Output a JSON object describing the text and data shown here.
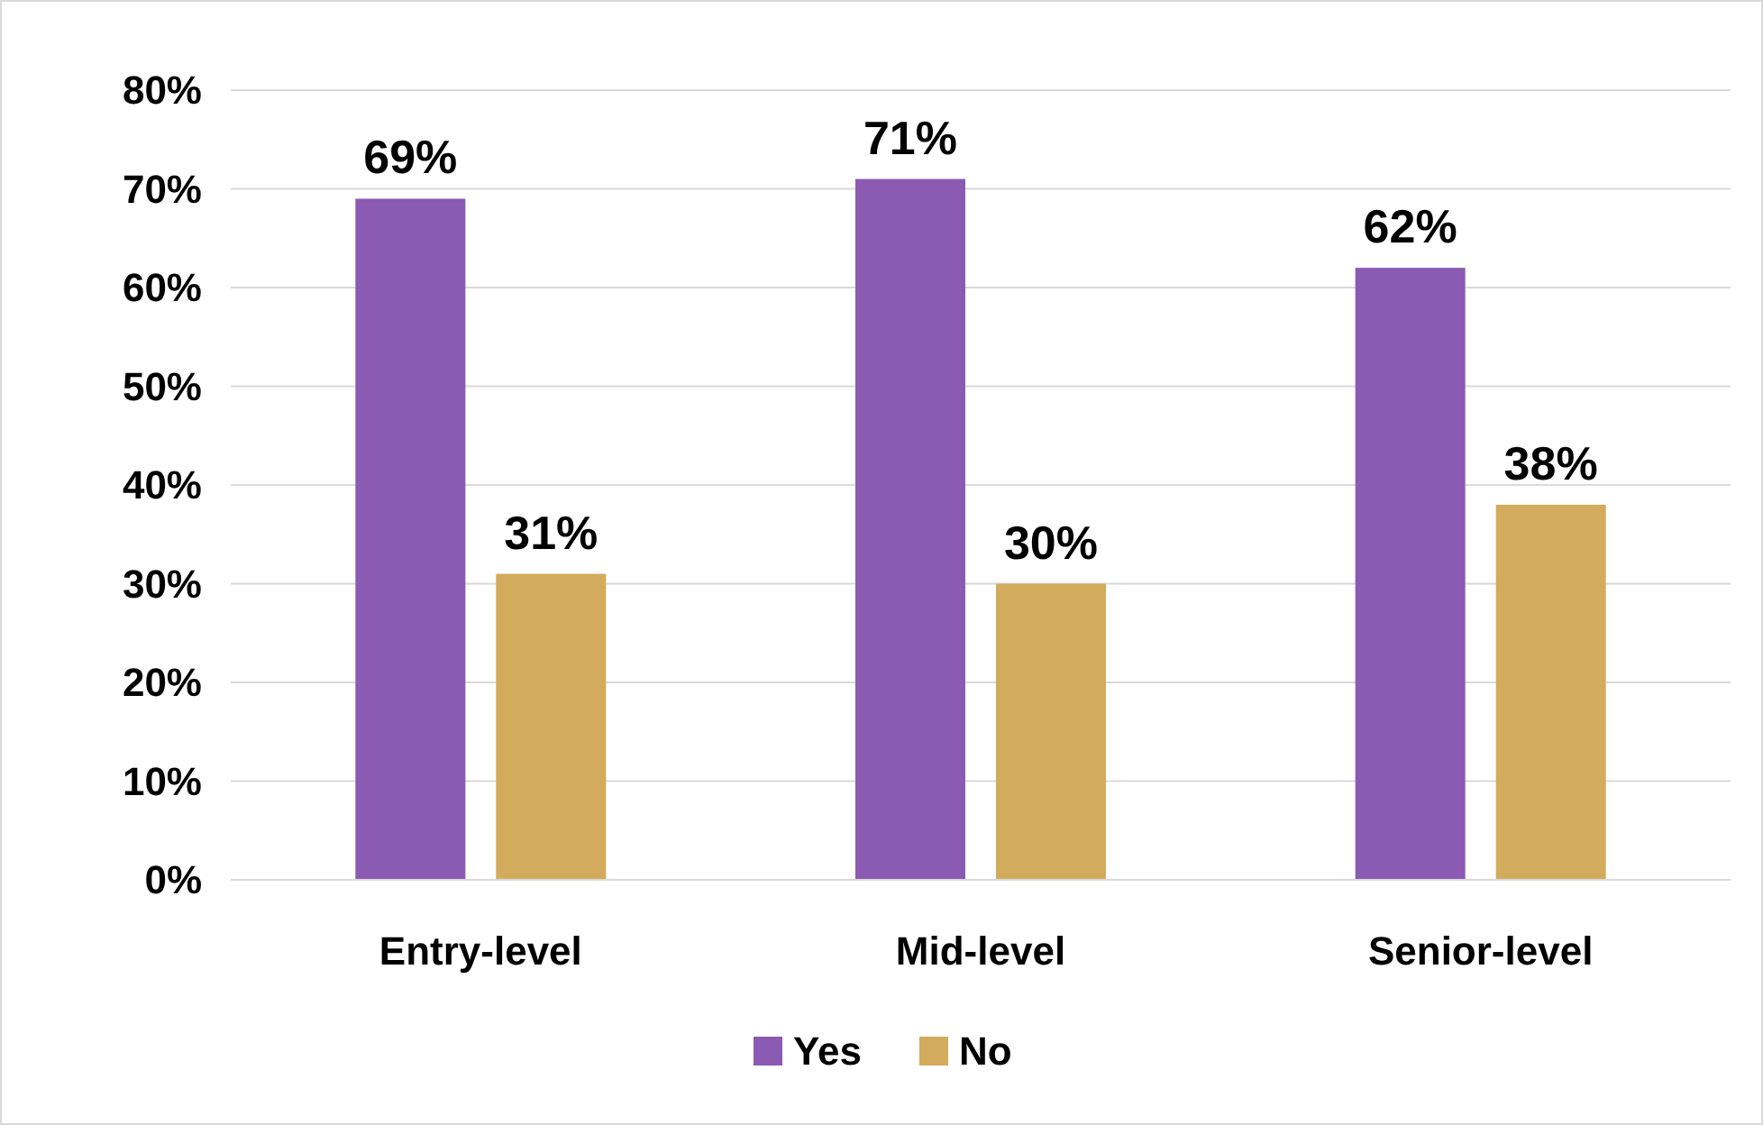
{
  "chart_data": {
    "type": "bar",
    "categories": [
      "Entry-level",
      "Mid-level",
      "Senior-level"
    ],
    "series": [
      {
        "name": "Yes",
        "color": "#8b5ab3",
        "values": [
          69,
          71,
          62
        ],
        "value_labels": [
          "69%",
          "71%",
          "62%"
        ]
      },
      {
        "name": "No",
        "color": "#d2ab5c",
        "values": [
          31,
          30,
          38
        ],
        "value_labels": [
          "31%",
          "30%",
          "38%"
        ]
      }
    ],
    "ylim": [
      0,
      80
    ],
    "yticks": [
      {
        "value": 0,
        "label": "0%"
      },
      {
        "value": 10,
        "label": "10%"
      },
      {
        "value": 20,
        "label": "20%"
      },
      {
        "value": 30,
        "label": "30%"
      },
      {
        "value": 40,
        "label": "40%"
      },
      {
        "value": 50,
        "label": "50%"
      },
      {
        "value": 60,
        "label": "60%"
      },
      {
        "value": 70,
        "label": "70%"
      },
      {
        "value": 80,
        "label": "80%"
      }
    ],
    "grid": "y",
    "legend": "bottom"
  }
}
